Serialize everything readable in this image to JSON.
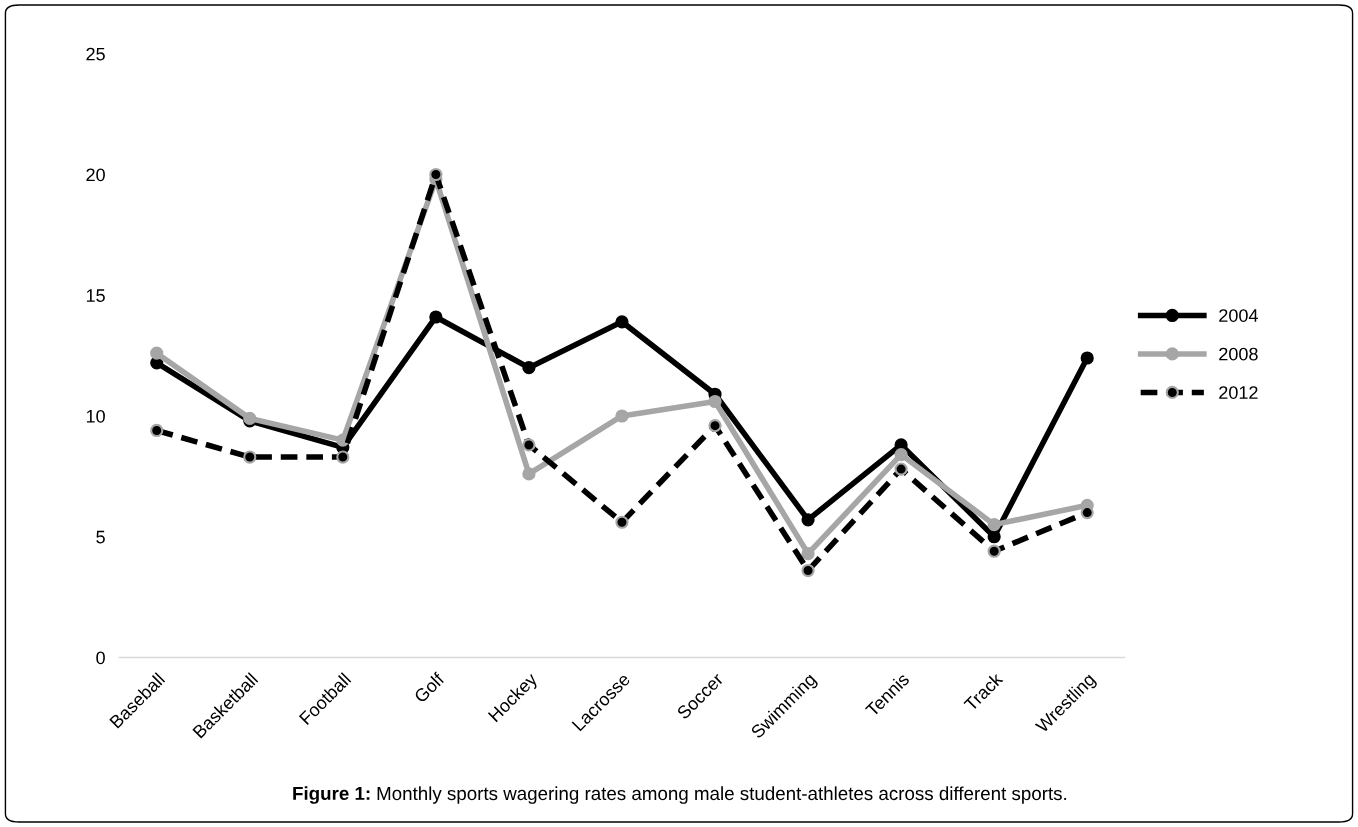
{
  "chart_data": {
    "type": "line",
    "categories": [
      "Baseball",
      "Basketball",
      "Football",
      "Golf",
      "Hockey",
      "Lacrosse",
      "Soccer",
      "Swimming",
      "Tennis",
      "Track",
      "Wrestling"
    ],
    "series": [
      {
        "name": "2004",
        "color": "#000000",
        "line_style": "solid",
        "values": [
          12.2,
          9.8,
          8.7,
          14.1,
          12.0,
          13.9,
          10.9,
          5.7,
          8.8,
          5.0,
          12.4
        ]
      },
      {
        "name": "2008",
        "color": "#a6a6a6",
        "line_style": "solid",
        "values": [
          12.6,
          9.9,
          9.0,
          19.8,
          7.6,
          10.0,
          10.6,
          4.3,
          8.4,
          5.5,
          6.3
        ]
      },
      {
        "name": "2012",
        "color": "#000000",
        "line_style": "dashed",
        "values": [
          9.4,
          8.3,
          8.3,
          20.0,
          8.8,
          5.6,
          9.6,
          3.6,
          7.8,
          4.4,
          6.0
        ]
      }
    ],
    "ylim": [
      0,
      25
    ],
    "yticks": [
      0,
      5,
      10,
      15,
      20,
      25
    ],
    "grid": false,
    "legend": "right",
    "marker": "circle",
    "annotations": [
      "Figure 1: Monthly sports wagering rates among male student-athletes across different sports."
    ]
  }
}
